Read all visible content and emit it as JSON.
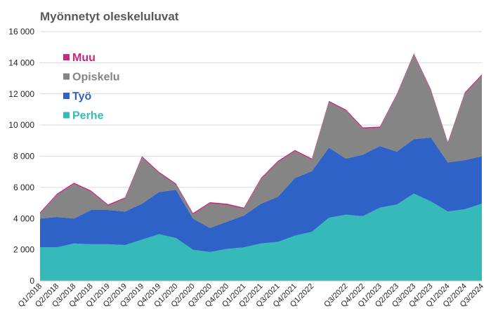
{
  "chart_data": {
    "type": "stacked_area",
    "title": "Myönnetyt oleskeluluvat",
    "categories": [
      "Q1/2018",
      "Q2/2018",
      "Q3/2018",
      "Q4/2018",
      "Q1/2019",
      "Q2/2019",
      "Q3/2019",
      "Q4/2019",
      "Q1/2020",
      "Q2/2020",
      "Q3/2020",
      "Q4/2020",
      "Q1/2021",
      "Q2/2021",
      "Q3/2021",
      "Q4/2021",
      "Q1/2022",
      null,
      "Q3/2022",
      "Q4/2022",
      "Q1/2023",
      "Q2/2023",
      "Q3/2023",
      "Q4/2023",
      "Q1/2024",
      "Q2/2024",
      "Q3/2024"
    ],
    "series": [
      {
        "name": "Perhe",
        "color": "#36b9b9",
        "values": [
          2150,
          2150,
          2400,
          2350,
          2350,
          2300,
          2650,
          3000,
          2750,
          2000,
          1850,
          2050,
          2150,
          2400,
          2500,
          2900,
          3150,
          4050,
          4250,
          4150,
          4700,
          4900,
          5600,
          5100,
          4450,
          4600,
          4950
        ]
      },
      {
        "name": "Työ",
        "color": "#2f62c6",
        "values": [
          1850,
          1950,
          1600,
          2200,
          2200,
          2150,
          2300,
          2700,
          3100,
          2000,
          1550,
          1750,
          2050,
          2550,
          2900,
          3700,
          3900,
          4500,
          3600,
          3950,
          3950,
          3400,
          3500,
          4100,
          3150,
          3150,
          3050
        ]
      },
      {
        "name": "Opiskelu",
        "color": "#858585",
        "values": [
          320,
          1420,
          2220,
          1170,
          270,
          820,
          2970,
          1220,
          320,
          270,
          1570,
          1070,
          420,
          1570,
          2220,
          1720,
          720,
          2920,
          3070,
          1670,
          1170,
          3620,
          5420,
          3020,
          1220,
          4270,
          5170
        ]
      },
      {
        "name": "Muu",
        "color": "#c42a7e",
        "values": [
          80,
          80,
          80,
          80,
          80,
          80,
          80,
          80,
          80,
          80,
          80,
          80,
          80,
          80,
          80,
          80,
          80,
          80,
          80,
          80,
          80,
          80,
          80,
          80,
          80,
          80,
          80
        ]
      }
    ],
    "ylim": [
      0,
      16000
    ],
    "yticks": [
      0,
      {
        "value": 2000,
        "label": "2 000"
      },
      {
        "value": 4000,
        "label": "4 000"
      },
      {
        "value": 6000,
        "label": "6 000"
      },
      {
        "value": 8000,
        "label": "8 000"
      },
      {
        "value": 10000,
        "label": "10 000"
      },
      {
        "value": 12000,
        "label": "12 000"
      },
      {
        "value": 14000,
        "label": "14 000"
      },
      {
        "value": 16000,
        "label": "16 000"
      }
    ],
    "grid": true,
    "legend": "top-left"
  }
}
